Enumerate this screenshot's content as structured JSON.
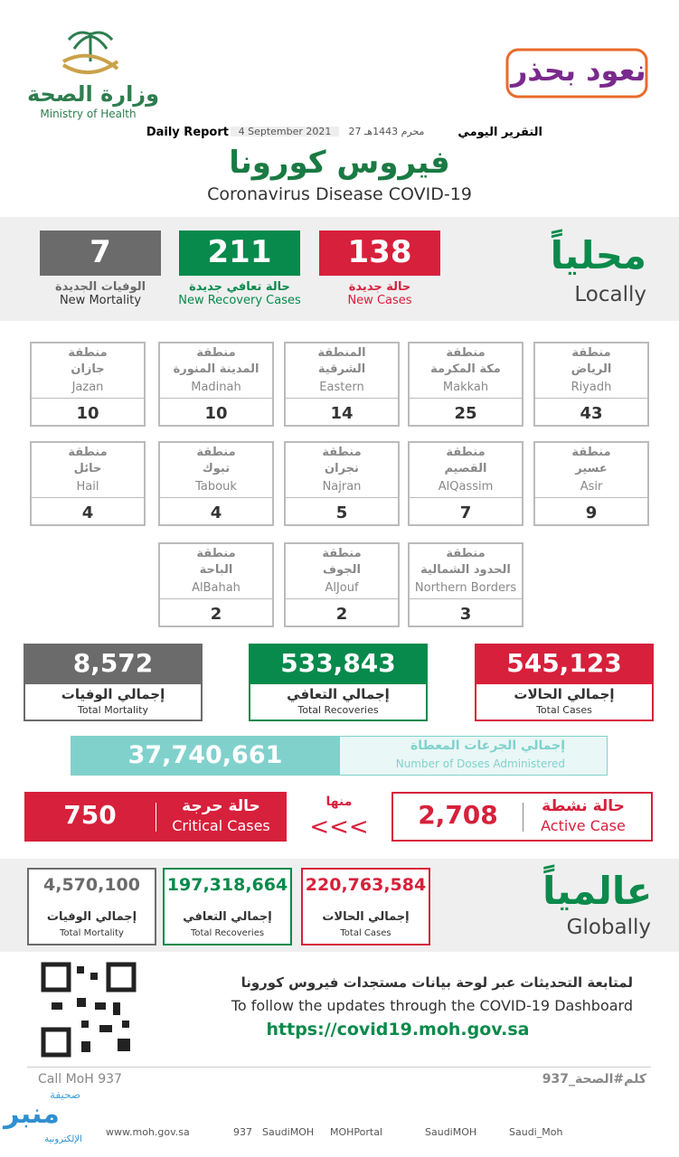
{
  "header": {
    "logo_ar": "وزارة الصحة",
    "logo_en": "Ministry of Health",
    "campaign": "نعود بحذر",
    "report_ar": "التقرير اليومي",
    "hijri": "27 محرم 1443هـ",
    "date": "4 September 2021",
    "report_en": "Daily Report",
    "title_ar": "فيروس كورونا",
    "title_en": "Coronavirus Disease COVID-19"
  },
  "local": {
    "label_ar": "محلياً",
    "label_en": "Locally",
    "stats": [
      {
        "value": "138",
        "ar": "حالة جديدة",
        "en": "New Cases"
      },
      {
        "value": "211",
        "ar": "حالة تعافي جديدة",
        "en": "New Recovery Cases"
      },
      {
        "value": "7",
        "ar": "الوفيات الجديدة",
        "en": "New Mortality"
      }
    ]
  },
  "regions": [
    {
      "prefix": "منطقة",
      "name_ar": "الرياض",
      "name_en": "Riyadh",
      "value": "43"
    },
    {
      "prefix": "منطقة",
      "name_ar": "مكة المكرمة",
      "name_en": "Makkah",
      "value": "25"
    },
    {
      "prefix": "المنطقة",
      "name_ar": "الشرقية",
      "name_en": "Eastern",
      "value": "14"
    },
    {
      "prefix": "منطقة",
      "name_ar": "المدينة المنورة",
      "name_en": "Madinah",
      "value": "10"
    },
    {
      "prefix": "منطقة",
      "name_ar": "جازان",
      "name_en": "Jazan",
      "value": "10"
    },
    {
      "prefix": "منطقة",
      "name_ar": "عسير",
      "name_en": "Asir",
      "value": "9"
    },
    {
      "prefix": "منطقة",
      "name_ar": "القصيم",
      "name_en": "AlQassim",
      "value": "7"
    },
    {
      "prefix": "منطقة",
      "name_ar": "نجران",
      "name_en": "Najran",
      "value": "5"
    },
    {
      "prefix": "منطقة",
      "name_ar": "تبوك",
      "name_en": "Tabouk",
      "value": "4"
    },
    {
      "prefix": "منطقة",
      "name_ar": "حائل",
      "name_en": "Hail",
      "value": "4"
    },
    {
      "prefix": "منطقة",
      "name_ar": "الحدود الشمالية",
      "name_en": "Northern Borders",
      "value": "3"
    },
    {
      "prefix": "منطقة",
      "name_ar": "الجوف",
      "name_en": "AlJouf",
      "value": "2"
    },
    {
      "prefix": "منطقة",
      "name_ar": "الباحة",
      "name_en": "AlBahah",
      "value": "2"
    }
  ],
  "totals": [
    {
      "value": "545,123",
      "ar": "إجمالي الحالات",
      "en": "Total Cases"
    },
    {
      "value": "533,843",
      "ar": "إجمالي التعافي",
      "en": "Total Recoveries"
    },
    {
      "value": "8,572",
      "ar": "إجمالي الوفيات",
      "en": "Total Mortality"
    }
  ],
  "doses": {
    "value": "37,740,661",
    "ar": "إجمالي الجرعات المعطاة",
    "en": "Number of Doses Administered"
  },
  "active": {
    "ar": "حالة نشطة",
    "en": "Active Case",
    "value": "2,708",
    "of_them": "منها",
    "arrows": "<<<",
    "critical_ar": "حالة حرجة",
    "critical_en": "Critical Cases",
    "critical_value": "750"
  },
  "global": {
    "label_ar": "عالمياً",
    "label_en": "Globally",
    "stats": [
      {
        "value": "220,763,584",
        "ar": "إجمالي الحالات",
        "en": "Total Cases"
      },
      {
        "value": "197,318,664",
        "ar": "إجمالي التعافي",
        "en": "Total Recoveries"
      },
      {
        "value": "4,570,100",
        "ar": "إجمالي الوفيات",
        "en": "Total Mortality"
      }
    ]
  },
  "footer": {
    "follow_ar": "لمتابعة التحديثات عبر لوحة بيانات مستجدات فيروس كورونا",
    "follow_en": "To follow the updates through the COVID-19 Dashboard",
    "url": "https://covid19.moh.gov.sa",
    "call": "Call MoH 937",
    "hashtag": "كلم#الصحة_937",
    "links": [
      "www.moh.gov.sa",
      "937",
      "SaudiMOH",
      "MOHPortal",
      "SaudiMOH",
      "Saudi_Moh"
    ],
    "watermark": [
      "صحيفة",
      "منبر",
      "الإلكترونية"
    ]
  }
}
